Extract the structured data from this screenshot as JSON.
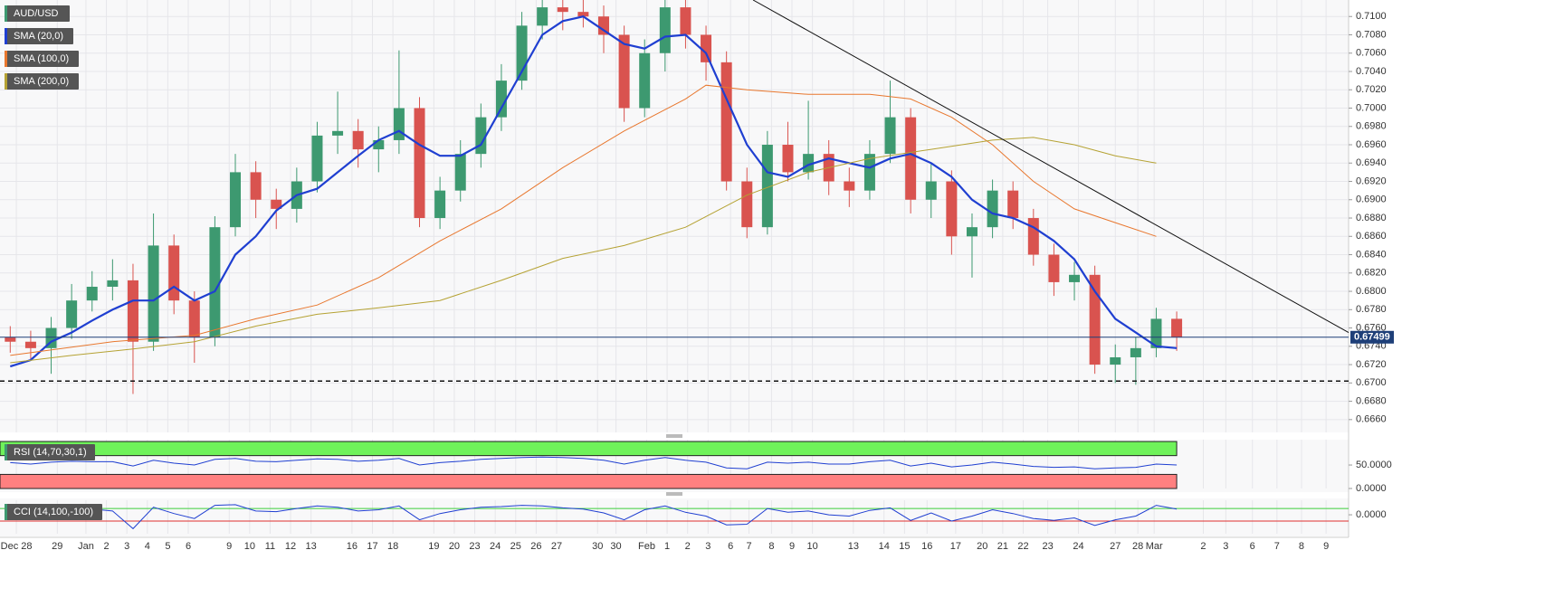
{
  "chart_data": [
    {
      "type": "candlestick",
      "name": "AUD/USD",
      "up_color": "#3d9970",
      "down_color": "#d9534f",
      "x": [
        0,
        1,
        2,
        3,
        4,
        5,
        6,
        7,
        8,
        9,
        10,
        11,
        12,
        13,
        14,
        15,
        16,
        17,
        18,
        19,
        20,
        21,
        22,
        23,
        24,
        25,
        26,
        27,
        28,
        29,
        30,
        31,
        32,
        33,
        34,
        35,
        36,
        37,
        38,
        39,
        40,
        41,
        42,
        43,
        44,
        45,
        46,
        47,
        48,
        49,
        50,
        51,
        52,
        53,
        54,
        55,
        56,
        57
      ],
      "open": [
        0.675,
        0.6745,
        0.6738,
        0.676,
        0.679,
        0.6805,
        0.6812,
        0.6745,
        0.685,
        0.679,
        0.675,
        0.687,
        0.693,
        0.69,
        0.689,
        0.692,
        0.697,
        0.6975,
        0.6955,
        0.6965,
        0.7,
        0.688,
        0.691,
        0.695,
        0.699,
        0.703,
        0.709,
        0.711,
        0.7105,
        0.71,
        0.708,
        0.7,
        0.706,
        0.711,
        0.708,
        0.705,
        0.692,
        0.687,
        0.696,
        0.693,
        0.695,
        0.692,
        0.691,
        0.695,
        0.699,
        0.69,
        0.692,
        0.686,
        0.687,
        0.691,
        0.688,
        0.684,
        0.681,
        0.6818,
        0.672,
        0.6728,
        0.6738,
        0.677
      ],
      "high": [
        0.6762,
        0.6757,
        0.6772,
        0.6808,
        0.6822,
        0.6835,
        0.683,
        0.6885,
        0.6862,
        0.68,
        0.6882,
        0.695,
        0.6942,
        0.6912,
        0.6935,
        0.6985,
        0.7018,
        0.6988,
        0.698,
        0.7063,
        0.7012,
        0.6925,
        0.6965,
        0.7005,
        0.7048,
        0.7105,
        0.7118,
        0.7118,
        0.7118,
        0.7112,
        0.709,
        0.7075,
        0.7118,
        0.7118,
        0.709,
        0.7062,
        0.6935,
        0.6975,
        0.6985,
        0.7008,
        0.6965,
        0.6935,
        0.6965,
        0.703,
        0.7,
        0.694,
        0.6932,
        0.6885,
        0.6922,
        0.692,
        0.689,
        0.6852,
        0.6832,
        0.6828,
        0.6742,
        0.675,
        0.6782,
        0.6778
      ],
      "low": [
        0.6733,
        0.6725,
        0.671,
        0.6748,
        0.6778,
        0.679,
        0.6688,
        0.6735,
        0.6775,
        0.6722,
        0.674,
        0.686,
        0.688,
        0.6868,
        0.6875,
        0.6908,
        0.695,
        0.6935,
        0.693,
        0.695,
        0.687,
        0.6868,
        0.6898,
        0.6935,
        0.6975,
        0.702,
        0.7075,
        0.7085,
        0.7088,
        0.706,
        0.6985,
        0.699,
        0.704,
        0.7065,
        0.703,
        0.691,
        0.6858,
        0.6862,
        0.692,
        0.6922,
        0.6905,
        0.6892,
        0.69,
        0.694,
        0.6885,
        0.688,
        0.684,
        0.6815,
        0.6858,
        0.6868,
        0.6828,
        0.6795,
        0.679,
        0.671,
        0.67,
        0.6698,
        0.6728,
        0.6735
      ],
      "close": [
        0.6745,
        0.6738,
        0.676,
        0.679,
        0.6805,
        0.6812,
        0.6745,
        0.685,
        0.679,
        0.675,
        0.687,
        0.693,
        0.69,
        0.689,
        0.692,
        0.697,
        0.6975,
        0.6955,
        0.6965,
        0.7,
        0.688,
        0.691,
        0.695,
        0.699,
        0.703,
        0.709,
        0.711,
        0.7105,
        0.71,
        0.708,
        0.7,
        0.706,
        0.711,
        0.708,
        0.705,
        0.692,
        0.687,
        0.696,
        0.693,
        0.695,
        0.692,
        0.691,
        0.695,
        0.699,
        0.69,
        0.692,
        0.686,
        0.687,
        0.691,
        0.688,
        0.684,
        0.681,
        0.6818,
        0.672,
        0.6728,
        0.6738,
        0.677,
        0.675
      ],
      "series": [
        {
          "name": "SMA (20,0)",
          "color": "#1f3fd1",
          "x": [
            0,
            1,
            2,
            3,
            4,
            5,
            6,
            7,
            8,
            9,
            10,
            11,
            12,
            13,
            14,
            15,
            16,
            17,
            18,
            19,
            20,
            21,
            22,
            23,
            24,
            25,
            26,
            27,
            28,
            29,
            30,
            31,
            32,
            33,
            34,
            35,
            36,
            37,
            38,
            39,
            40,
            41,
            42,
            43,
            44,
            45,
            46,
            47,
            48,
            49,
            50,
            51,
            52,
            53,
            54,
            55,
            56,
            57
          ],
          "values": [
            0.6718,
            0.6725,
            0.6745,
            0.6755,
            0.6768,
            0.678,
            0.679,
            0.679,
            0.6805,
            0.679,
            0.68,
            0.684,
            0.686,
            0.6888,
            0.6905,
            0.6912,
            0.693,
            0.6948,
            0.6965,
            0.6975,
            0.696,
            0.6948,
            0.6948,
            0.696,
            0.7,
            0.704,
            0.708,
            0.7095,
            0.71,
            0.7085,
            0.707,
            0.7065,
            0.7078,
            0.708,
            0.706,
            0.701,
            0.696,
            0.693,
            0.6925,
            0.6938,
            0.6945,
            0.694,
            0.6935,
            0.6945,
            0.695,
            0.694,
            0.6925,
            0.69,
            0.6885,
            0.688,
            0.687,
            0.6855,
            0.6835,
            0.68,
            0.677,
            0.6755,
            0.674,
            0.6738
          ]
        },
        {
          "name": "SMA (100,0)",
          "color": "#e8772e",
          "x": [
            0,
            5,
            9,
            12,
            15,
            18,
            21,
            24,
            27,
            30,
            33,
            34,
            36,
            39,
            42,
            44,
            46,
            48,
            50,
            52,
            54,
            56
          ],
          "values": [
            0.673,
            0.6745,
            0.6752,
            0.677,
            0.6785,
            0.6815,
            0.6855,
            0.689,
            0.6935,
            0.6975,
            0.701,
            0.7025,
            0.702,
            0.7015,
            0.7015,
            0.701,
            0.699,
            0.696,
            0.692,
            0.689,
            0.6875,
            0.686
          ]
        },
        {
          "name": "SMA (200,0)",
          "color": "#b5a233",
          "x": [
            0,
            3,
            6,
            9,
            12,
            15,
            18,
            21,
            24,
            27,
            30,
            33,
            36,
            39,
            42,
            45,
            48,
            50,
            52,
            54,
            56
          ],
          "values": [
            0.6722,
            0.673,
            0.6737,
            0.6745,
            0.6762,
            0.6775,
            0.6782,
            0.679,
            0.6812,
            0.6836,
            0.685,
            0.687,
            0.6905,
            0.693,
            0.6945,
            0.6955,
            0.6965,
            0.6968,
            0.696,
            0.6948,
            0.694
          ]
        }
      ],
      "last_price": 0.67499,
      "support_level": 0.6702,
      "trend_line": {
        "x": [
          36.3,
          65.4
        ],
        "y": [
          0.7118,
          0.6755
        ]
      },
      "xlim": [
        -0.5,
        65.4
      ],
      "ylim": [
        0.6646,
        0.7118
      ],
      "xticks": [
        {
          "value": 0.3,
          "label": "Dec 28"
        },
        {
          "value": 2.3,
          "label": "29"
        },
        {
          "value": 3.7,
          "label": "Jan"
        },
        {
          "value": 4.7,
          "label": "2"
        },
        {
          "value": 5.7,
          "label": "3"
        },
        {
          "value": 6.7,
          "label": "4"
        },
        {
          "value": 7.7,
          "label": "5"
        },
        {
          "value": 8.7,
          "label": "6"
        },
        {
          "value": 10.7,
          "label": "9"
        },
        {
          "value": 11.7,
          "label": "10"
        },
        {
          "value": 12.7,
          "label": "11"
        },
        {
          "value": 13.7,
          "label": "12"
        },
        {
          "value": 14.7,
          "label": "13"
        },
        {
          "value": 16.7,
          "label": "16"
        },
        {
          "value": 17.7,
          "label": "17"
        },
        {
          "value": 18.7,
          "label": "18"
        },
        {
          "value": 20.7,
          "label": "19"
        },
        {
          "value": 21.7,
          "label": "20"
        },
        {
          "value": 22.7,
          "label": "23"
        },
        {
          "value": 23.7,
          "label": "24"
        },
        {
          "value": 24.7,
          "label": "25"
        },
        {
          "value": 25.7,
          "label": "26"
        },
        {
          "value": 26.7,
          "label": "27"
        },
        {
          "value": 28.7,
          "label": "30"
        },
        {
          "value": 29.6,
          "label": "30"
        },
        {
          "value": 31.1,
          "label": "Feb"
        },
        {
          "value": 32.1,
          "label": "1"
        },
        {
          "value": 33.1,
          "label": "2"
        },
        {
          "value": 34.1,
          "label": "3"
        },
        {
          "value": 35.2,
          "label": "6"
        },
        {
          "value": 36.1,
          "label": "7"
        },
        {
          "value": 37.2,
          "label": "8"
        },
        {
          "value": 38.2,
          "label": "9"
        },
        {
          "value": 39.2,
          "label": "10"
        },
        {
          "value": 41.2,
          "label": "13"
        },
        {
          "value": 42.7,
          "label": "14"
        },
        {
          "value": 43.7,
          "label": "15"
        },
        {
          "value": 44.8,
          "label": "16"
        },
        {
          "value": 46.2,
          "label": "17"
        },
        {
          "value": 47.5,
          "label": "20"
        },
        {
          "value": 48.5,
          "label": "21"
        },
        {
          "value": 49.5,
          "label": "22"
        },
        {
          "value": 50.7,
          "label": "23"
        },
        {
          "value": 52.2,
          "label": "24"
        },
        {
          "value": 54.0,
          "label": "27"
        },
        {
          "value": 55.1,
          "label": "28"
        },
        {
          "value": 55.9,
          "label": "Mar"
        },
        {
          "value": 58.3,
          "label": "2"
        },
        {
          "value": 59.4,
          "label": "3"
        },
        {
          "value": 60.7,
          "label": "6"
        },
        {
          "value": 61.9,
          "label": "7"
        },
        {
          "value": 63.1,
          "label": "8"
        },
        {
          "value": 64.3,
          "label": "9"
        }
      ],
      "yticks": [
        {
          "value": 0.666,
          "label": "0.6660"
        },
        {
          "value": 0.668,
          "label": "0.6680"
        },
        {
          "value": 0.67,
          "label": "0.6700"
        },
        {
          "value": 0.672,
          "label": "0.6720"
        },
        {
          "value": 0.674,
          "label": "0.6740"
        },
        {
          "value": 0.676,
          "label": "0.6760"
        },
        {
          "value": 0.678,
          "label": "0.6780"
        },
        {
          "value": 0.68,
          "label": "0.6800"
        },
        {
          "value": 0.682,
          "label": "0.6820"
        },
        {
          "value": 0.684,
          "label": "0.6840"
        },
        {
          "value": 0.686,
          "label": "0.6860"
        },
        {
          "value": 0.688,
          "label": "0.6880"
        },
        {
          "value": 0.69,
          "label": "0.6900"
        },
        {
          "value": 0.692,
          "label": "0.6920"
        },
        {
          "value": 0.694,
          "label": "0.6940"
        },
        {
          "value": 0.696,
          "label": "0.6960"
        },
        {
          "value": 0.698,
          "label": "0.6980"
        },
        {
          "value": 0.7,
          "label": "0.7000"
        },
        {
          "value": 0.702,
          "label": "0.7020"
        },
        {
          "value": 0.704,
          "label": "0.7040"
        },
        {
          "value": 0.706,
          "label": "0.7060"
        },
        {
          "value": 0.708,
          "label": "0.7080"
        },
        {
          "value": 0.71,
          "label": "0.7100"
        }
      ],
      "grid": true
    },
    {
      "type": "line",
      "name": "RSI (14,70,30,1)",
      "color": "#1f3fd1",
      "upper": 70,
      "lower": 30,
      "band_top": 100,
      "values": [
        55,
        52,
        56,
        58,
        57,
        57,
        48,
        60,
        54,
        50,
        62,
        64,
        58,
        57,
        60,
        63,
        62,
        58,
        60,
        64,
        50,
        55,
        58,
        62,
        64,
        66,
        67,
        66,
        64,
        60,
        52,
        60,
        66,
        60,
        56,
        44,
        42,
        56,
        54,
        56,
        52,
        52,
        57,
        60,
        48,
        54,
        46,
        50,
        56,
        52,
        47,
        45,
        46,
        42,
        44,
        45,
        52,
        50
      ],
      "ylim": [
        0,
        104
      ],
      "yticks": [
        {
          "value": 50,
          "label": "50.0000"
        },
        {
          "value": 0,
          "label": "0.0000"
        }
      ]
    },
    {
      "type": "line",
      "name": "CCI (14,100,-100)",
      "color": "#1f3fd1",
      "upper": 100,
      "lower": -100,
      "values": [
        40,
        20,
        80,
        110,
        90,
        60,
        -220,
        120,
        20,
        -60,
        150,
        160,
        60,
        50,
        100,
        140,
        120,
        60,
        80,
        140,
        -80,
        20,
        80,
        120,
        130,
        150,
        140,
        110,
        90,
        30,
        -80,
        80,
        140,
        40,
        -20,
        -160,
        -150,
        100,
        40,
        60,
        0,
        -20,
        70,
        110,
        -90,
        30,
        -100,
        -20,
        80,
        20,
        -60,
        -90,
        -50,
        -170,
        -80,
        -20,
        150,
        90
      ],
      "ylim": [
        -300,
        230
      ],
      "yticks": [
        {
          "value": 0,
          "label": "0.0000"
        }
      ]
    }
  ]
}
